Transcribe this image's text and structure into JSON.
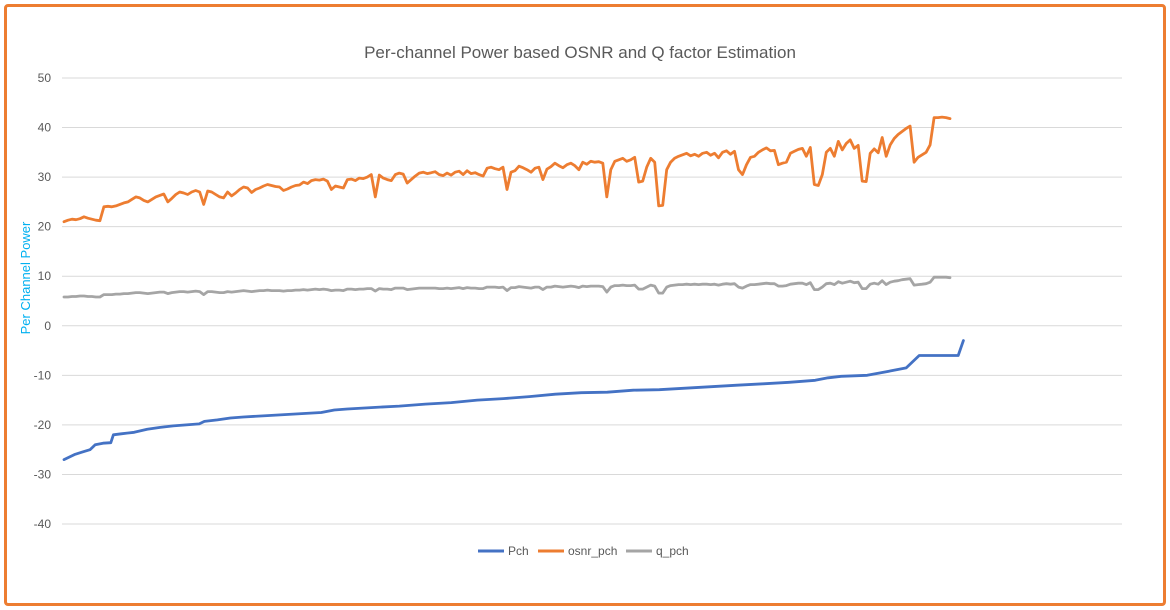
{
  "chart_data": {
    "type": "line",
    "title": "Per-channel Power based OSNR and Q factor Estimation",
    "xlabel": "",
    "ylabel": "Per Channel Power",
    "ylim": [
      -40,
      50
    ],
    "yticks": [
      50,
      40,
      30,
      20,
      10,
      0,
      -10,
      -20,
      -30,
      -40
    ],
    "grid": true,
    "legend_position": "bottom",
    "x": {
      "start": 1,
      "end": 226,
      "step": 1
    },
    "series": [
      {
        "name": "Pch",
        "color": "#4472C4",
        "points": [
          [
            1,
            -27
          ],
          [
            3,
            -26.5
          ],
          [
            5,
            -26
          ],
          [
            8,
            -25.5
          ],
          [
            11,
            -25
          ],
          [
            13,
            -24
          ],
          [
            16,
            -23.7
          ],
          [
            19,
            -23.6
          ],
          [
            20,
            -22
          ],
          [
            23,
            -21.8
          ],
          [
            28,
            -21.5
          ],
          [
            33,
            -20.9
          ],
          [
            38,
            -20.5
          ],
          [
            43,
            -20.2
          ],
          [
            48,
            -20
          ],
          [
            53,
            -19.8
          ],
          [
            55,
            -19.3
          ],
          [
            60,
            -19
          ],
          [
            65,
            -18.6
          ],
          [
            70,
            -18.4
          ],
          [
            80,
            -18.1
          ],
          [
            90,
            -17.8
          ],
          [
            100,
            -17.5
          ],
          [
            105,
            -17
          ],
          [
            110,
            -16.8
          ],
          [
            120,
            -16.5
          ],
          [
            130,
            -16.2
          ],
          [
            140,
            -15.8
          ],
          [
            150,
            -15.5
          ],
          [
            160,
            -15
          ],
          [
            170,
            -14.7
          ],
          [
            180,
            -14.3
          ],
          [
            190,
            -13.8
          ],
          [
            200,
            -13.5
          ],
          [
            210,
            -13.4
          ],
          [
            220,
            -13
          ],
          [
            230,
            -12.9
          ],
          [
            240,
            -12.6
          ],
          [
            250,
            -12.3
          ],
          [
            260,
            -12
          ],
          [
            270,
            -11.7
          ],
          [
            280,
            -11.4
          ],
          [
            290,
            -11
          ],
          [
            295,
            -10.5
          ],
          [
            300,
            -10.2
          ],
          [
            310,
            -10
          ],
          [
            315,
            -9.5
          ],
          [
            320,
            -9
          ],
          [
            325,
            -8.5
          ],
          [
            330,
            -6
          ],
          [
            340,
            -6
          ],
          [
            345,
            -6
          ],
          [
            347,
            -3
          ]
        ],
        "x_scale": 0.6513
      },
      {
        "name": "osnr_pch",
        "color": "#ED7D31",
        "values": [
          21,
          21.3,
          21.5,
          21.4,
          21.6,
          22,
          21.7,
          21.5,
          21.3,
          21.2,
          24,
          24.1,
          24,
          24.2,
          24.5,
          24.8,
          25,
          25.5,
          26,
          25.8,
          25.3,
          25,
          25.5,
          26,
          26.3,
          26.6,
          25,
          25.7,
          26.5,
          27,
          26.8,
          26.5,
          27,
          27.3,
          27,
          24.5,
          27.2,
          27,
          26.5,
          26,
          25.8,
          27,
          26.2,
          26.8,
          27.5,
          28,
          27.8,
          26.9,
          27.5,
          27.8,
          28.2,
          28.5,
          28.3,
          28.1,
          28,
          27.3,
          27.6,
          28,
          28.3,
          28.4,
          29,
          28.7,
          29.3,
          29.5,
          29.4,
          29.6,
          29.2,
          27.5,
          28.2,
          28,
          27.8,
          29.5,
          29.6,
          29.3,
          29.8,
          29.7,
          30,
          30.5,
          26,
          30.4,
          29.8,
          29.5,
          29.3,
          30.5,
          30.8,
          30.6,
          28.8,
          29.5,
          30.2,
          30.8,
          31,
          30.7,
          30.9,
          31.1,
          30.5,
          30.3,
          30.8,
          30.4,
          31,
          31.2,
          30.5,
          31.3,
          30.7,
          30.9,
          30.5,
          30.2,
          31.8,
          32,
          31.7,
          31.5,
          32,
          27.5,
          31,
          31.3,
          32.2,
          31.9,
          31.5,
          31,
          31.8,
          32,
          29.5,
          31.6,
          32.1,
          32.8,
          32.3,
          31.9,
          32.5,
          32.8,
          32.3,
          31.5,
          33,
          32.6,
          33.2,
          33,
          33.1,
          32.8,
          26,
          31.5,
          33.2,
          33.5,
          33.8,
          33.2,
          33.5,
          34,
          29,
          29.2,
          32,
          33.8,
          33,
          24.2,
          24.3,
          31.5,
          33,
          33.8,
          34.2,
          34.5,
          34.8,
          34.3,
          34.6,
          34.2,
          34.8,
          35,
          34.4,
          34.8,
          33.9,
          35,
          35.3,
          34.6,
          35.2,
          31.5,
          30.5,
          32.5,
          34,
          34.2,
          35,
          35.5,
          35.9,
          35.3,
          35.4,
          32.5,
          32.8,
          33,
          34.8,
          35.2,
          35.6,
          35.8,
          34.2,
          36,
          28.5,
          28.3,
          30.5,
          35,
          35.8,
          34.2,
          37.2,
          35.5,
          36.8,
          37.5,
          35.8,
          36.4,
          29.2,
          29.1,
          34.8,
          35.7,
          34.9,
          38,
          34.2,
          36.5,
          37.8,
          38.6,
          39.2,
          39.8,
          40.3,
          33,
          34,
          34.5,
          35,
          36.5,
          42,
          42,
          42.1,
          42,
          41.8
        ],
        "x_scale": 1
      },
      {
        "name": "q_pch",
        "color": "#A5A5A5",
        "values": [
          5.8,
          5.8,
          5.9,
          5.9,
          6,
          6,
          5.9,
          5.9,
          5.8,
          5.8,
          6.3,
          6.3,
          6.3,
          6.4,
          6.4,
          6.5,
          6.5,
          6.6,
          6.7,
          6.7,
          6.6,
          6.5,
          6.6,
          6.7,
          6.8,
          6.8,
          6.5,
          6.7,
          6.8,
          6.9,
          6.9,
          6.8,
          6.9,
          7,
          6.9,
          6.3,
          6.9,
          6.9,
          6.8,
          6.7,
          6.7,
          6.9,
          6.8,
          6.9,
          7,
          7.1,
          7,
          6.9,
          7,
          7.1,
          7.1,
          7.2,
          7.1,
          7.1,
          7.1,
          7,
          7.1,
          7.1,
          7.2,
          7.2,
          7.3,
          7.2,
          7.3,
          7.4,
          7.3,
          7.4,
          7.3,
          7.1,
          7.2,
          7.2,
          7.1,
          7.4,
          7.4,
          7.3,
          7.4,
          7.4,
          7.5,
          7.5,
          7,
          7.5,
          7.4,
          7.4,
          7.3,
          7.6,
          7.6,
          7.6,
          7.3,
          7.4,
          7.5,
          7.6,
          7.6,
          7.6,
          7.6,
          7.6,
          7.5,
          7.5,
          7.6,
          7.5,
          7.6,
          7.7,
          7.5,
          7.7,
          7.6,
          7.6,
          7.5,
          7.5,
          7.8,
          7.8,
          7.8,
          7.7,
          7.8,
          7.1,
          7.7,
          7.7,
          7.9,
          7.8,
          7.7,
          7.6,
          7.8,
          7.8,
          7.3,
          7.8,
          7.8,
          8,
          7.9,
          7.8,
          7.9,
          8,
          7.9,
          7.7,
          8,
          7.9,
          8,
          8,
          8,
          7.9,
          6.8,
          7.8,
          8.1,
          8.1,
          8.2,
          8.1,
          8.1,
          8.2,
          7.4,
          7.4,
          7.8,
          8.2,
          8,
          6.6,
          6.6,
          7.8,
          8.1,
          8.2,
          8.3,
          8.3,
          8.4,
          8.3,
          8.4,
          8.3,
          8.4,
          8.4,
          8.3,
          8.4,
          8.2,
          8.4,
          8.5,
          8.4,
          8.5,
          7.8,
          7.6,
          8,
          8.3,
          8.3,
          8.4,
          8.5,
          8.6,
          8.5,
          8.5,
          8,
          8,
          8.1,
          8.4,
          8.5,
          8.6,
          8.6,
          8.3,
          8.7,
          7.3,
          7.3,
          7.8,
          8.5,
          8.6,
          8.3,
          8.9,
          8.6,
          8.8,
          9,
          8.7,
          8.8,
          7.5,
          7.5,
          8.4,
          8.6,
          8.4,
          9.1,
          8.3,
          8.8,
          9,
          9.1,
          9.3,
          9.4,
          9.5,
          8.2,
          8.3,
          8.4,
          8.5,
          8.8,
          9.8,
          9.8,
          9.8,
          9.8,
          9.7
        ],
        "x_scale": 1
      }
    ]
  }
}
